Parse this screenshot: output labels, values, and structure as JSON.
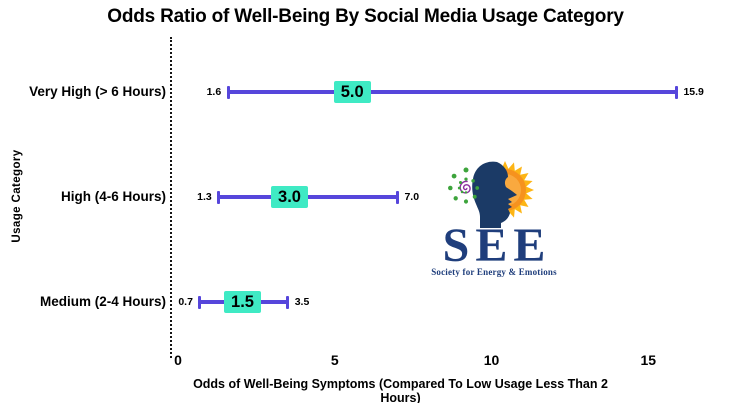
{
  "chart_data": {
    "type": "errorbar",
    "orientation": "horizontal",
    "title": "Odds Ratio of Well-Being By Social Media Usage Category",
    "xlabel": "Odds of Well-Being Symptoms (Compared To Low Usage Less Than 2 Hours)",
    "ylabel": "Usage Category",
    "xlim": [
      0,
      16.5
    ],
    "xticks": [
      "0",
      "5",
      "10",
      "15"
    ],
    "xtick_values": [
      0,
      5,
      10,
      15
    ],
    "grid": false,
    "baseline": {
      "x": 0,
      "style": "dotted"
    },
    "categories": [
      "Very High (> 6 Hours)",
      "High (4-6 Hours)",
      "Medium (2-4 Hours)"
    ],
    "series": [
      {
        "name": "Odds Ratio",
        "values": [
          5.0,
          3.0,
          1.5
        ],
        "value_labels": [
          "5.0",
          "3.0",
          "1.5"
        ],
        "ci_low": [
          1.6,
          1.3,
          0.7
        ],
        "ci_low_labels": [
          "1.6",
          "1.3",
          "0.7"
        ],
        "ci_high": [
          15.9,
          7.0,
          3.5
        ],
        "ci_high_labels": [
          "15.9",
          "7.0",
          "3.5"
        ]
      }
    ],
    "colors": {
      "errorbar": "#5646DB",
      "value_box": "#3FEAC4",
      "text": "#000000"
    }
  },
  "watermark": {
    "acronym": "SEE",
    "tagline": "Society for Energy & Emotions",
    "colors": {
      "sun_ray": "#FDB515",
      "sun_disc": "#F6921E",
      "sun_glow": "#F9A93F",
      "navy_head": "#1B3A66",
      "navy_text": "#1F3E7C",
      "green": "#3DA43C",
      "purple": "#8B2FA0"
    }
  }
}
